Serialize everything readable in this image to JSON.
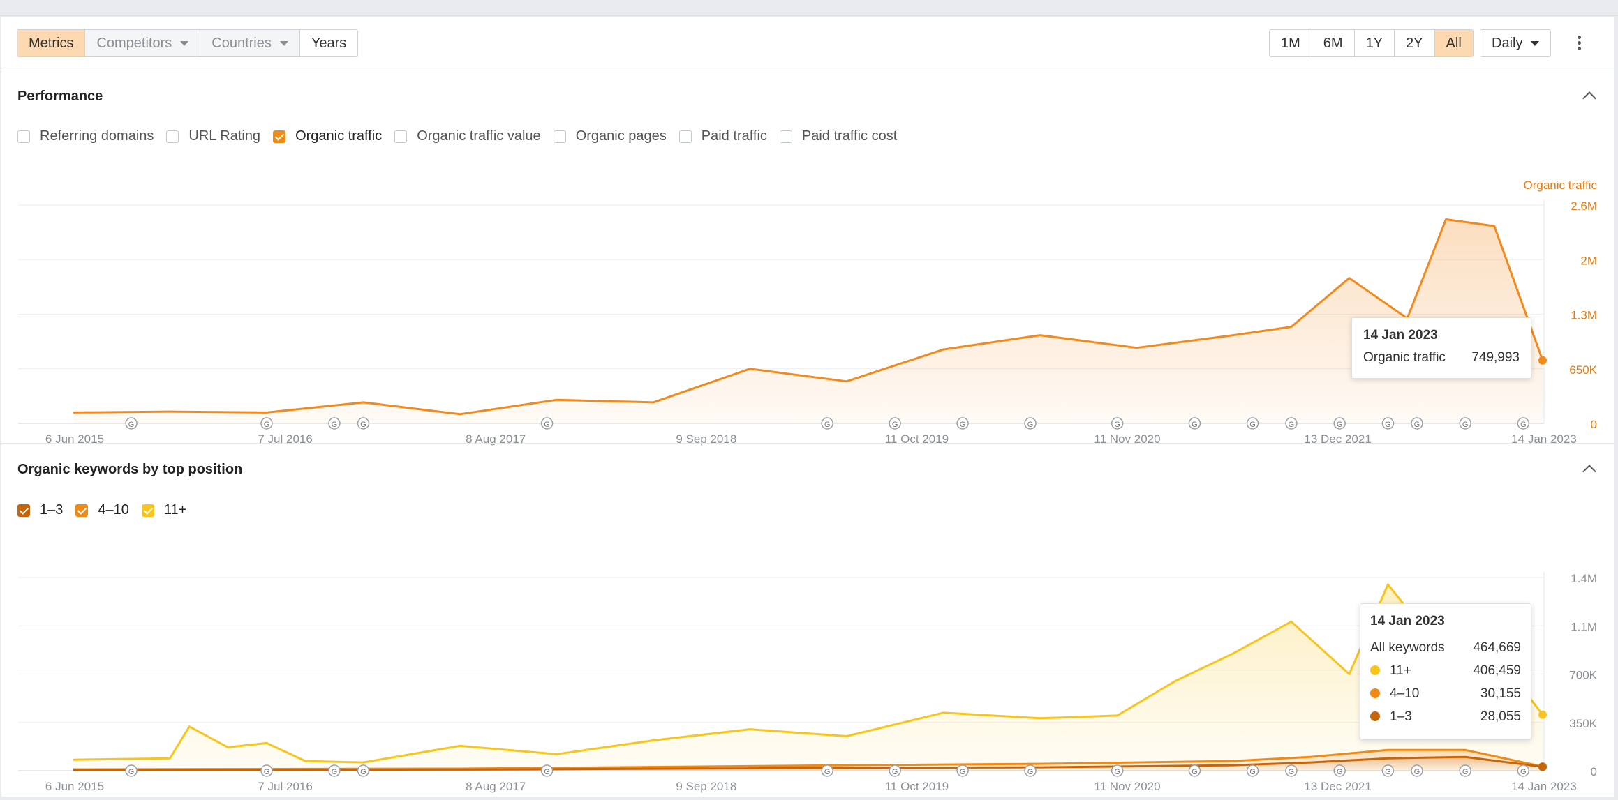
{
  "toolbar": {
    "left_tabs": [
      {
        "label": "Metrics",
        "state": "active"
      },
      {
        "label": "Competitors",
        "state": "dim",
        "dropdown": true
      },
      {
        "label": "Countries",
        "state": "dim",
        "dropdown": true
      },
      {
        "label": "Years",
        "state": "normal"
      }
    ],
    "ranges": [
      "1M",
      "6M",
      "1Y",
      "2Y",
      "All"
    ],
    "active_range": "All",
    "interval": "Daily"
  },
  "performance": {
    "title": "Performance",
    "metrics": [
      {
        "label": "Referring domains",
        "checked": false
      },
      {
        "label": "URL Rating",
        "checked": false
      },
      {
        "label": "Organic traffic",
        "checked": true
      },
      {
        "label": "Organic traffic value",
        "checked": false
      },
      {
        "label": "Organic pages",
        "checked": false
      },
      {
        "label": "Paid traffic",
        "checked": false
      },
      {
        "label": "Paid traffic cost",
        "checked": false
      }
    ],
    "tooltip": {
      "date": "14 Jan 2023",
      "label": "Organic traffic",
      "value": "749,993"
    }
  },
  "keywords": {
    "title": "Organic keywords by top position",
    "legend": [
      {
        "label": "1–3",
        "color": "#c8650a"
      },
      {
        "label": "4–10",
        "color": "#f08a16"
      },
      {
        "label": "11+",
        "color": "#f7c51d"
      }
    ],
    "tooltip": {
      "date": "14 Jan 2023",
      "rows": [
        {
          "label": "All keywords",
          "value": "464,669",
          "color": ""
        },
        {
          "label": "11+",
          "value": "406,459",
          "color": "#f7c51d"
        },
        {
          "label": "4–10",
          "value": "30,155",
          "color": "#f08a16"
        },
        {
          "label": "1–3",
          "value": "28,055",
          "color": "#c8650a"
        }
      ]
    }
  },
  "chart_data": [
    {
      "type": "area",
      "series_label": "Organic traffic",
      "color": "#f2891c",
      "x_ticks": [
        "6 Jun 2015",
        "7 Jul 2016",
        "8 Aug 2017",
        "9 Sep 2018",
        "11 Oct 2019",
        "11 Nov 2020",
        "13 Dec 2021",
        "14 Jan 2023"
      ],
      "y_ticks": [
        "0",
        "650K",
        "1.3M",
        "2M",
        "2.6M"
      ],
      "ylim": [
        0,
        2600000
      ],
      "series": [
        {
          "name": "Organic traffic",
          "x": [
            0.0,
            0.5,
            1.0,
            1.5,
            2.0,
            2.5,
            3.0,
            3.5,
            4.0,
            4.5,
            5.0,
            5.5,
            6.0,
            6.3,
            6.6,
            6.9,
            7.1,
            7.35,
            7.6
          ],
          "values": [
            130000,
            140000,
            130000,
            250000,
            110000,
            280000,
            250000,
            650000,
            500000,
            880000,
            1050000,
            900000,
            1050000,
            1150000,
            1730000,
            1250000,
            2430000,
            2350000,
            749993
          ]
        }
      ]
    },
    {
      "type": "area",
      "x_ticks": [
        "6 Jun 2015",
        "7 Jul 2016",
        "8 Aug 2017",
        "9 Sep 2018",
        "11 Oct 2019",
        "11 Nov 2020",
        "13 Dec 2021",
        "14 Jan 2023"
      ],
      "y_ticks": [
        "0",
        "350K",
        "700K",
        "1.1M",
        "1.4M"
      ],
      "ylim": [
        0,
        1400000
      ],
      "series": [
        {
          "name": "11+",
          "x": [
            0.0,
            0.5,
            0.6,
            0.8,
            1.0,
            1.2,
            1.5,
            2.0,
            2.5,
            3.0,
            3.5,
            4.0,
            4.5,
            5.0,
            5.4,
            5.7,
            6.0,
            6.3,
            6.6,
            6.8,
            7.0,
            7.3,
            7.6
          ],
          "values": [
            80000,
            90000,
            320000,
            170000,
            200000,
            70000,
            60000,
            180000,
            120000,
            220000,
            300000,
            250000,
            420000,
            380000,
            400000,
            650000,
            850000,
            1080000,
            700000,
            1350000,
            1000000,
            950000,
            406459
          ]
        },
        {
          "name": "4–10",
          "x": [
            0.0,
            2.0,
            4.0,
            5.0,
            6.0,
            6.4,
            6.8,
            7.2,
            7.6
          ],
          "values": [
            10000,
            15000,
            40000,
            50000,
            70000,
            100000,
            150000,
            150000,
            30155
          ]
        },
        {
          "name": "1–3",
          "x": [
            0.0,
            2.0,
            4.0,
            5.0,
            6.0,
            6.4,
            6.8,
            7.2,
            7.6
          ],
          "values": [
            5000,
            8000,
            20000,
            25000,
            40000,
            60000,
            90000,
            100000,
            28055
          ]
        }
      ]
    }
  ]
}
